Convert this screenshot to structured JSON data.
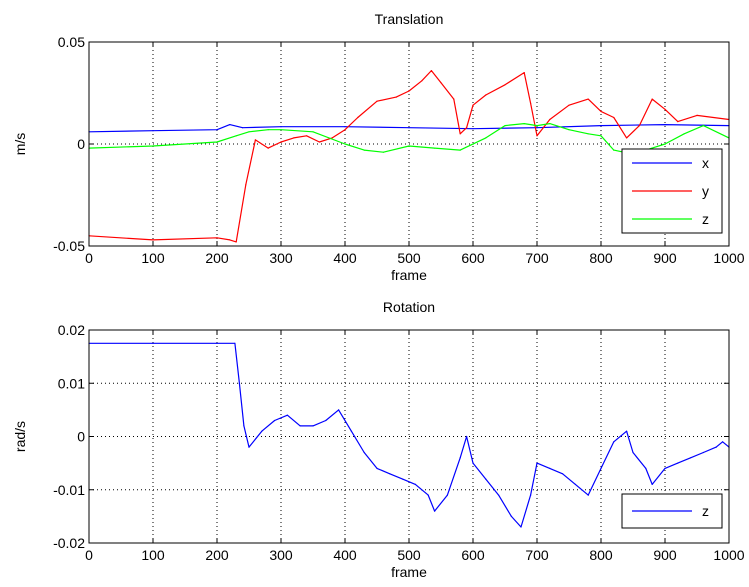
{
  "chart_data": [
    {
      "type": "line",
      "title": "Translation",
      "xlabel": "frame",
      "ylabel": "m/s",
      "xlim": [
        0,
        1000
      ],
      "ylim": [
        -0.05,
        0.05
      ],
      "xticks": [
        0,
        100,
        200,
        300,
        400,
        500,
        600,
        700,
        800,
        900,
        1000
      ],
      "yticks": [
        -0.05,
        0,
        0.05
      ],
      "xtick_labels": [
        "0",
        "100",
        "200",
        "300",
        "400",
        "500",
        "600",
        "700",
        "800",
        "900",
        "1000"
      ],
      "ytick_labels": [
        "-0.05",
        "0",
        "0.05"
      ],
      "grid": true,
      "legend_position": "bottom-right",
      "series": [
        {
          "name": "x",
          "color": "#0000ff",
          "x": [
            0,
            100,
            200,
            220,
            240,
            300,
            400,
            500,
            600,
            700,
            800,
            900,
            1000
          ],
          "y": [
            0.006,
            0.0065,
            0.007,
            0.0095,
            0.008,
            0.0085,
            0.0085,
            0.008,
            0.0075,
            0.008,
            0.009,
            0.0095,
            0.009
          ]
        },
        {
          "name": "y",
          "color": "#ff0000",
          "x": [
            0,
            100,
            200,
            220,
            230,
            245,
            260,
            280,
            300,
            320,
            340,
            360,
            380,
            400,
            420,
            450,
            480,
            500,
            520,
            535,
            550,
            570,
            580,
            590,
            600,
            620,
            650,
            680,
            690,
            700,
            720,
            750,
            780,
            800,
            820,
            840,
            860,
            880,
            900,
            920,
            950,
            1000
          ],
          "y": [
            -0.045,
            -0.047,
            -0.046,
            -0.047,
            -0.048,
            -0.02,
            0.002,
            -0.002,
            0.001,
            0.003,
            0.004,
            0.001,
            0.003,
            0.007,
            0.013,
            0.021,
            0.023,
            0.026,
            0.031,
            0.036,
            0.03,
            0.022,
            0.005,
            0.008,
            0.019,
            0.024,
            0.029,
            0.035,
            0.02,
            0.004,
            0.012,
            0.019,
            0.022,
            0.016,
            0.013,
            0.003,
            0.009,
            0.022,
            0.017,
            0.011,
            0.014,
            0.012
          ]
        },
        {
          "name": "z",
          "color": "#00ff00",
          "x": [
            0,
            100,
            200,
            230,
            250,
            280,
            300,
            350,
            400,
            430,
            460,
            500,
            540,
            580,
            620,
            650,
            680,
            700,
            720,
            750,
            780,
            800,
            820,
            850,
            880,
            900,
            930,
            960,
            1000
          ],
          "y": [
            -0.002,
            -0.001,
            0.001,
            0.004,
            0.006,
            0.007,
            0.007,
            0.006,
            0.0,
            -0.003,
            -0.004,
            -0.001,
            -0.002,
            -0.003,
            0.003,
            0.009,
            0.01,
            0.009,
            0.01,
            0.007,
            0.005,
            0.004,
            -0.003,
            -0.005,
            -0.002,
            0.0,
            0.005,
            0.009,
            0.003
          ]
        }
      ]
    },
    {
      "type": "line",
      "title": "Rotation",
      "xlabel": "frame",
      "ylabel": "rad/s",
      "xlim": [
        0,
        1000
      ],
      "ylim": [
        -0.02,
        0.02
      ],
      "xticks": [
        0,
        100,
        200,
        300,
        400,
        500,
        600,
        700,
        800,
        900,
        1000
      ],
      "yticks": [
        -0.02,
        -0.01,
        0,
        0.01,
        0.02
      ],
      "xtick_labels": [
        "0",
        "100",
        "200",
        "300",
        "400",
        "500",
        "600",
        "700",
        "800",
        "900",
        "1000"
      ],
      "ytick_labels": [
        "-0.02",
        "-0.01",
        "0",
        "0.01",
        "0.02"
      ],
      "grid": true,
      "legend_position": "bottom-right",
      "series": [
        {
          "name": "z",
          "color": "#0000ff",
          "x": [
            0,
            100,
            200,
            228,
            235,
            242,
            250,
            270,
            290,
            310,
            330,
            350,
            370,
            390,
            410,
            430,
            450,
            470,
            490,
            510,
            530,
            540,
            560,
            580,
            590,
            600,
            620,
            640,
            660,
            675,
            690,
            700,
            720,
            740,
            760,
            780,
            800,
            820,
            840,
            850,
            870,
            880,
            900,
            920,
            940,
            960,
            980,
            990,
            1000
          ],
          "y": [
            0.0175,
            0.0175,
            0.0175,
            0.0175,
            0.01,
            0.002,
            -0.002,
            0.001,
            0.003,
            0.004,
            0.002,
            0.002,
            0.003,
            0.005,
            0.001,
            -0.003,
            -0.006,
            -0.007,
            -0.008,
            -0.009,
            -0.011,
            -0.014,
            -0.011,
            -0.004,
            0.0,
            -0.005,
            -0.008,
            -0.011,
            -0.015,
            -0.017,
            -0.011,
            -0.005,
            -0.006,
            -0.007,
            -0.009,
            -0.011,
            -0.006,
            -0.001,
            0.001,
            -0.003,
            -0.006,
            -0.009,
            -0.006,
            -0.005,
            -0.004,
            -0.003,
            -0.002,
            -0.001,
            -0.002
          ]
        }
      ]
    }
  ]
}
